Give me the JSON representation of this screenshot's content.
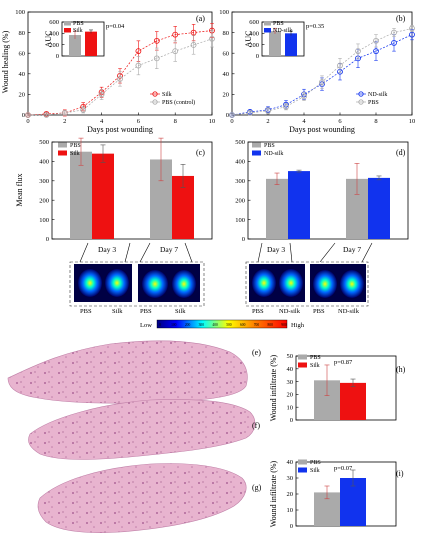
{
  "colors": {
    "pbs": "#aaaaaa",
    "silk": "#ee1111",
    "nd_silk": "#1133ee",
    "black": "#000000",
    "grid": "#cccccc"
  },
  "chart_data": [
    {
      "id": "a",
      "panel_label": "(a)",
      "type": "line",
      "xlabel": "Days post wounding",
      "ylabel": "Wound healing (%)",
      "xlim": [
        0,
        10
      ],
      "ylim": [
        0,
        100
      ],
      "xticks": [
        0,
        2,
        4,
        6,
        8,
        10
      ],
      "yticks": [
        0,
        20,
        40,
        60,
        80,
        100
      ],
      "legend": "bottom-right",
      "series": [
        {
          "name": "Silk",
          "key": "silk",
          "x": [
            0,
            1,
            2,
            3,
            4,
            5,
            6,
            7,
            8,
            9,
            10
          ],
          "y": [
            0,
            1,
            2,
            8,
            22,
            38,
            62,
            72,
            78,
            80,
            82
          ],
          "err": [
            1,
            2,
            3,
            4,
            5,
            7,
            10,
            9,
            8,
            8,
            7
          ]
        },
        {
          "name": "PBS (control)",
          "key": "pbs",
          "x": [
            0,
            1,
            2,
            3,
            4,
            5,
            6,
            7,
            8,
            9,
            10
          ],
          "y": [
            0,
            0,
            2,
            5,
            20,
            35,
            48,
            55,
            62,
            68,
            74
          ],
          "err": [
            1,
            1,
            2,
            3,
            5,
            7,
            9,
            10,
            10,
            9,
            8
          ]
        }
      ],
      "inset": {
        "type": "bar",
        "ylabel": "AUC",
        "yticks": [
          0,
          200,
          400,
          600
        ],
        "ylim": [
          0,
          600
        ],
        "annotation": "p=0.04",
        "series": [
          {
            "name": "PBS",
            "key": "pbs",
            "value": 370,
            "err": 70
          },
          {
            "name": "Silk",
            "key": "silk",
            "value": 430,
            "err": 30
          }
        ]
      }
    },
    {
      "id": "b",
      "panel_label": "(b)",
      "type": "line",
      "xlabel": "Days post wounding",
      "ylabel": "",
      "xlim": [
        0,
        10
      ],
      "ylim": [
        0,
        100
      ],
      "xticks": [
        0,
        2,
        4,
        6,
        8,
        10
      ],
      "yticks": [
        0,
        20,
        40,
        60,
        80,
        100
      ],
      "legend": "bottom-right",
      "series": [
        {
          "name": "ND-silk",
          "key": "nd_silk",
          "x": [
            0,
            1,
            2,
            3,
            4,
            5,
            6,
            7,
            8,
            9,
            10
          ],
          "y": [
            0,
            3,
            5,
            10,
            20,
            30,
            42,
            55,
            62,
            70,
            78
          ],
          "err": [
            1,
            2,
            3,
            4,
            5,
            6,
            8,
            9,
            9,
            8,
            5
          ]
        },
        {
          "name": "PBS",
          "key": "pbs",
          "x": [
            0,
            1,
            2,
            3,
            4,
            5,
            6,
            7,
            8,
            9,
            10
          ],
          "y": [
            0,
            2,
            4,
            8,
            18,
            32,
            48,
            62,
            72,
            80,
            84
          ],
          "err": [
            1,
            2,
            3,
            3,
            4,
            6,
            7,
            7,
            6,
            4,
            3
          ]
        }
      ],
      "inset": {
        "type": "bar",
        "ylabel": "AUC",
        "yticks": [
          0,
          200,
          400,
          600
        ],
        "ylim": [
          0,
          600
        ],
        "annotation": "p=0.35",
        "series": [
          {
            "name": "PBS",
            "key": "pbs",
            "value": 440,
            "err": 50
          },
          {
            "name": "ND-silk",
            "key": "nd_silk",
            "value": 400,
            "err": 40
          }
        ]
      }
    },
    {
      "id": "c",
      "panel_label": "(c)",
      "type": "bar",
      "xlabel": "",
      "ylabel": "Mean flux",
      "ylim": [
        0,
        500
      ],
      "yticks": [
        0,
        100,
        200,
        300,
        400,
        500
      ],
      "categories": [
        "Day 3",
        "Day 7"
      ],
      "legend": "top-left",
      "series": [
        {
          "name": "PBS",
          "key": "pbs",
          "values": [
            450,
            410
          ],
          "err": [
            70,
            110
          ]
        },
        {
          "name": "Silk",
          "key": "silk",
          "values": [
            440,
            325
          ],
          "err": [
            45,
            60
          ]
        }
      ]
    },
    {
      "id": "d",
      "panel_label": "(d)",
      "type": "bar",
      "xlabel": "",
      "ylabel": "",
      "ylim": [
        0,
        500
      ],
      "yticks": [
        0,
        100,
        200,
        300,
        400,
        500
      ],
      "categories": [
        "Day 3",
        "Day 7"
      ],
      "legend": "top-left",
      "series": [
        {
          "name": "PBS",
          "key": "pbs",
          "values": [
            310,
            310
          ],
          "err": [
            30,
            80
          ]
        },
        {
          "name": "ND-silk",
          "key": "nd_silk",
          "values": [
            350,
            315
          ],
          "err": [
            5,
            10
          ]
        }
      ]
    },
    {
      "id": "h",
      "panel_label": "(h)",
      "type": "bar",
      "xlabel": "",
      "ylabel": "Wound infiltrate (%)",
      "ylim": [
        0,
        50
      ],
      "yticks": [
        0,
        10,
        20,
        30,
        40,
        50
      ],
      "annotation": "p=0.87",
      "legend": "top-left",
      "series": [
        {
          "name": "PBS",
          "key": "pbs",
          "value": 31,
          "err": 12
        },
        {
          "name": "Silk",
          "key": "silk",
          "value": 29,
          "err": 3
        }
      ]
    },
    {
      "id": "i",
      "panel_label": "(i)",
      "type": "bar",
      "xlabel": "",
      "ylabel": "Wound infiltrate (%)",
      "ylim": [
        0,
        40
      ],
      "yticks": [
        0,
        10,
        20,
        30,
        40
      ],
      "annotation": "p=0.07",
      "legend": "top-left",
      "series": [
        {
          "name": "PBS",
          "key": "pbs",
          "value": 21,
          "err": 4
        },
        {
          "name": "Silk",
          "key": "nd_silk",
          "value": 30,
          "err": 5
        }
      ]
    }
  ],
  "imaging": {
    "silk_group": {
      "day3_labels": [
        "PBS",
        "Silk"
      ],
      "day7_labels": [
        "PBS",
        "Silk"
      ]
    },
    "ndsilk_group": {
      "day3_labels": [
        "PBS",
        "ND-silk"
      ],
      "day7_labels": [
        "PBS",
        "ND-silk"
      ]
    },
    "colorbar": {
      "low_label": "Low",
      "high_label": "High",
      "ticks": [
        "0",
        "100",
        "200",
        "300",
        "400",
        "500",
        "600",
        "700",
        "800",
        "900"
      ]
    }
  },
  "histology": {
    "panel_labels": [
      "(e)",
      "(f)",
      "(g)"
    ]
  }
}
